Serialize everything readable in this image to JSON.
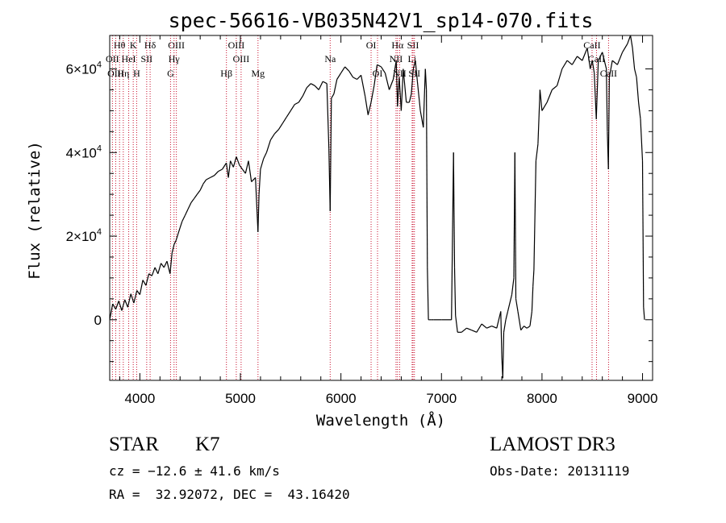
{
  "chart_data": {
    "type": "line",
    "title": "spec-56616-VB035N42V1_sp14-070.fits",
    "xlabel": "Wavelength (Å)",
    "ylabel": "Flux (relative)",
    "xlim": [
      3700,
      9100
    ],
    "ylim": [
      -14500,
      68000
    ],
    "x_ticks": [
      4000,
      5000,
      6000,
      7000,
      8000,
      9000
    ],
    "x_tick_labels": [
      "4000",
      "5000",
      "6000",
      "7000",
      "8000",
      "9000"
    ],
    "y_ticks": [
      0,
      20000,
      40000,
      60000
    ],
    "y_tick_labels": [
      {
        "base": "0",
        "exp": ""
      },
      {
        "base": "2×10",
        "exp": "4"
      },
      {
        "base": "4×10",
        "exp": "4"
      },
      {
        "base": "6×10",
        "exp": "4"
      }
    ],
    "spectral_lines": [
      {
        "label": "Hθ",
        "wave": 3798,
        "row": 0
      },
      {
        "label": "K",
        "wave": 3934,
        "row": 0
      },
      {
        "label": "Hδ",
        "wave": 4102,
        "row": 0
      },
      {
        "label": "OIII",
        "wave": 4363,
        "row": 0
      },
      {
        "label": "OIII",
        "wave": 4959,
        "row": 0
      },
      {
        "label": "Na",
        "wave": 5893,
        "row": 1
      },
      {
        "label": "OI",
        "wave": 6300,
        "row": 0
      },
      {
        "label": "Hα",
        "wave": 6563,
        "row": 0
      },
      {
        "label": "SII",
        "wave": 6717,
        "row": 0
      },
      {
        "label": "CaII",
        "wave": 8498,
        "row": 0
      },
      {
        "label": "OII",
        "wave": 3727,
        "row": 1
      },
      {
        "label": "HeI",
        "wave": 3889,
        "row": 1
      },
      {
        "label": "SII",
        "wave": 4068,
        "row": 1
      },
      {
        "label": "Hγ",
        "wave": 4340,
        "row": 1
      },
      {
        "label": "OIII",
        "wave": 5007,
        "row": 1
      },
      {
        "label": "NII",
        "wave": 6548,
        "row": 1
      },
      {
        "label": "Li",
        "wave": 6708,
        "row": 1
      },
      {
        "label": "CaII",
        "wave": 8542,
        "row": 1
      },
      {
        "label": "OIII",
        "wave": 3760,
        "row": 2
      },
      {
        "label": "Hη",
        "wave": 3835,
        "row": 2
      },
      {
        "label": "H",
        "wave": 3968,
        "row": 2
      },
      {
        "label": "G",
        "wave": 4305,
        "row": 2
      },
      {
        "label": "Hβ",
        "wave": 4861,
        "row": 2
      },
      {
        "label": "Mg",
        "wave": 5175,
        "row": 2
      },
      {
        "label": "OI",
        "wave": 6364,
        "row": 2
      },
      {
        "label": "NII",
        "wave": 6584,
        "row": 2
      },
      {
        "label": "SII",
        "wave": 6731,
        "row": 2
      },
      {
        "label": "CaII",
        "wave": 8662,
        "row": 2
      }
    ],
    "series": [
      {
        "name": "flux",
        "x": [
          3700,
          3730,
          3760,
          3790,
          3820,
          3850,
          3880,
          3910,
          3940,
          3970,
          4000,
          4030,
          4060,
          4090,
          4120,
          4150,
          4180,
          4210,
          4240,
          4270,
          4300,
          4320,
          4340,
          4360,
          4380,
          4400,
          4420,
          4450,
          4480,
          4510,
          4540,
          4570,
          4600,
          4630,
          4660,
          4700,
          4740,
          4780,
          4820,
          4860,
          4880,
          4900,
          4930,
          4960,
          4990,
          5020,
          5050,
          5080,
          5110,
          5150,
          5175,
          5185,
          5200,
          5230,
          5260,
          5300,
          5340,
          5380,
          5420,
          5460,
          5500,
          5540,
          5580,
          5620,
          5660,
          5700,
          5740,
          5780,
          5820,
          5860,
          5880,
          5893,
          5905,
          5930,
          5960,
          6000,
          6040,
          6080,
          6120,
          6160,
          6200,
          6240,
          6270,
          6300,
          6330,
          6360,
          6400,
          6440,
          6480,
          6520,
          6550,
          6563,
          6580,
          6600,
          6620,
          6650,
          6680,
          6700,
          6720,
          6740,
          6760,
          6790,
          6820,
          6840,
          6850,
          6860,
          6870,
          6880,
          6900,
          6920,
          6950,
          7000,
          7050,
          7100,
          7120,
          7130,
          7140,
          7150,
          7160,
          7200,
          7250,
          7300,
          7350,
          7400,
          7450,
          7500,
          7550,
          7590,
          7600,
          7610,
          7620,
          7640,
          7660,
          7700,
          7720,
          7730,
          7740,
          7760,
          7790,
          7820,
          7850,
          7880,
          7900,
          7910,
          7920,
          7940,
          7960,
          7980,
          8000,
          8050,
          8100,
          8150,
          8200,
          8250,
          8300,
          8350,
          8400,
          8450,
          8480,
          8500,
          8520,
          8540,
          8560,
          8600,
          8640,
          8650,
          8660,
          8670,
          8700,
          8750,
          8800,
          8850,
          8880,
          8900,
          8920,
          8940,
          8960,
          8980,
          9000,
          9010,
          9020
        ],
        "y": [
          0,
          3800,
          2500,
          4500,
          2200,
          4800,
          3000,
          6200,
          4000,
          7000,
          6000,
          9500,
          8200,
          11000,
          10500,
          12500,
          11000,
          13500,
          12500,
          14000,
          11000,
          16000,
          18000,
          19000,
          20500,
          22000,
          23500,
          25000,
          26500,
          28000,
          29000,
          30000,
          31000,
          32500,
          33500,
          34000,
          34500,
          35500,
          36000,
          37500,
          34000,
          38000,
          36500,
          39000,
          37000,
          36000,
          35000,
          38000,
          33000,
          34000,
          21000,
          30000,
          36000,
          38500,
          40000,
          43000,
          44500,
          45500,
          47000,
          48500,
          50000,
          51500,
          52000,
          53500,
          55500,
          56500,
          56000,
          55000,
          57000,
          56500,
          41000,
          26000,
          53000,
          54000,
          57500,
          59000,
          60500,
          59500,
          58000,
          57500,
          58500,
          53500,
          49000,
          52000,
          56000,
          61000,
          60500,
          59000,
          55000,
          57500,
          62000,
          51000,
          58000,
          50000,
          60000,
          52000,
          52000,
          54000,
          60000,
          62000,
          57000,
          50000,
          46000,
          60000,
          55000,
          12500,
          0,
          0,
          0,
          0,
          0,
          0,
          0,
          0,
          40000,
          12500,
          1000,
          -1000,
          -3000,
          -3000,
          -2000,
          -2500,
          -3000,
          -1000,
          -2000,
          -1500,
          -2000,
          2000,
          -9000,
          -14000,
          -3000,
          0,
          2000,
          6000,
          10000,
          40000,
          5000,
          2000,
          -2500,
          -1500,
          -2000,
          -1500,
          2000,
          8000,
          12000,
          38000,
          42000,
          55000,
          50000,
          52000,
          55000,
          56000,
          60000,
          62000,
          61000,
          63000,
          62000,
          65000,
          60000,
          62000,
          59000,
          48000,
          62000,
          64000,
          60000,
          45000,
          36000,
          58000,
          62000,
          61000,
          64000,
          66000,
          68000,
          65000,
          60000,
          58000,
          52000,
          48000,
          38000,
          3000,
          0
        ]
      }
    ]
  },
  "info": {
    "object_class": "STAR",
    "subclass": "K7",
    "survey": "LAMOST DR3",
    "redshift": "cz = −12.6 ± 41.6 km/s",
    "obs_date": "Obs-Date: 20131119",
    "coords": "RA =  32.92072, DEC =  43.16420"
  }
}
